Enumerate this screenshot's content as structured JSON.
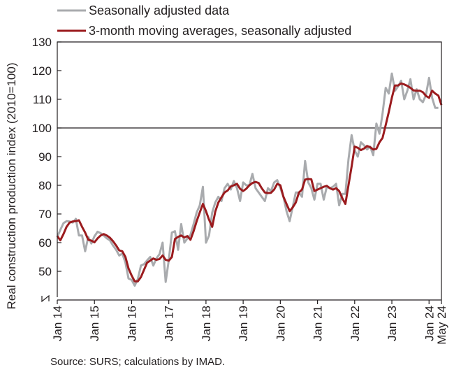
{
  "chart_data": {
    "type": "line",
    "ylabel": "Real construction production index (2010=100)",
    "ylim": [
      40,
      130
    ],
    "yticks": [
      50,
      60,
      70,
      80,
      90,
      100,
      110,
      120,
      130
    ],
    "x_range": [
      "2014-01",
      "2024-05"
    ],
    "xticks": [
      {
        "label": "Jan 14",
        "date": "2014-01"
      },
      {
        "label": "Jan 15",
        "date": "2015-01"
      },
      {
        "label": "Jan 16",
        "date": "2016-01"
      },
      {
        "label": "Jan 17",
        "date": "2017-01"
      },
      {
        "label": "Jan 18",
        "date": "2018-01"
      },
      {
        "label": "Jan 19",
        "date": "2019-01"
      },
      {
        "label": "Jan 20",
        "date": "2020-01"
      },
      {
        "label": "Jan 21",
        "date": "2021-01"
      },
      {
        "label": "Jan 22",
        "date": "2022-01"
      },
      {
        "label": "Jan 23",
        "date": "2023-01"
      },
      {
        "label": "Jan 24",
        "date": "2024-01"
      },
      {
        "label": "May 24",
        "date": "2024-05"
      }
    ],
    "reference_line": 100,
    "grid": false,
    "legend_position": "top-left",
    "series": [
      {
        "name": "Seasonally adjusted data",
        "color": "#a9abae",
        "values": [
          62,
          64.5,
          66.8,
          67.5,
          67.4,
          67,
          68.3,
          62.5,
          62.5,
          57,
          62,
          59.7,
          62.2,
          63.8,
          63.3,
          62.5,
          61.5,
          60.8,
          59,
          57.5,
          55.5,
          56.2,
          53,
          47.5,
          47,
          45,
          47.3,
          52,
          52.5,
          53.8,
          55,
          52,
          54.5,
          56,
          60,
          46.3,
          54,
          63.5,
          64,
          57.5,
          66.5,
          60,
          61.5,
          62.7,
          66.5,
          70.5,
          73,
          79.5,
          60,
          62.5,
          70.5,
          74,
          76,
          74.5,
          79,
          80.5,
          78.5,
          81.5,
          79,
          74.5,
          81,
          80,
          80,
          84,
          79,
          77.5,
          76,
          74.5,
          79,
          78,
          81,
          81.8,
          79,
          76,
          71,
          67.5,
          72.5,
          77.5,
          77.5,
          76,
          88.5,
          81,
          79,
          75,
          80.5,
          80.5,
          75,
          79.5,
          79,
          79.5,
          80.5,
          73,
          77,
          77,
          89,
          97.5,
          92.2,
          90,
          95,
          94,
          92.5,
          93.5,
          90.5,
          101.5,
          98,
          105,
          114,
          112,
          119,
          113,
          114.5,
          116.5,
          110,
          113,
          117,
          110,
          113.5,
          110,
          109,
          111.5,
          117.5,
          110.5,
          107,
          107
        ]
      },
      {
        "name": "3-month moving averages, seasonally adjusted",
        "color": "#9b1b1e",
        "values": [
          62.3,
          60.8,
          63,
          65.5,
          67,
          67.4,
          67.5,
          67.8,
          65.5,
          63.5,
          61,
          60.7,
          60.1,
          61.5,
          62.5,
          63,
          62.5,
          61.7,
          60.5,
          59,
          57.3,
          57,
          55,
          51,
          48.5,
          46.5,
          46.5,
          48,
          50.5,
          53,
          53.7,
          54.5,
          54,
          54.3,
          55.5,
          54,
          53.7,
          55,
          61.3,
          62,
          62.5,
          61.8,
          62.3,
          61,
          64,
          67.5,
          70.5,
          73.5,
          71,
          68,
          65.5,
          70.8,
          74,
          75.8,
          77.5,
          78.2,
          79.6,
          80,
          80.5,
          78.8,
          78,
          78.8,
          80,
          80.8,
          81.2,
          80.8,
          79,
          77.5,
          77.3,
          77.4,
          78.5,
          80.5,
          80,
          76,
          73.5,
          71,
          72.3,
          74,
          77.5,
          78.5,
          82,
          82.2,
          82.1,
          78,
          78.5,
          79,
          79.5,
          79.8,
          79,
          78.5,
          79,
          78,
          75.5,
          73.5,
          80,
          86.5,
          93.5,
          93.1,
          92.3,
          92.8,
          93.7,
          93.3,
          92.5,
          92.7,
          95,
          96.5,
          101,
          105.5,
          110.5,
          114.8,
          114.8,
          115.5,
          115.2,
          114.7,
          114,
          113.1,
          113,
          113,
          112.5,
          111.2,
          110.5,
          113,
          112,
          111.3,
          108
        ]
      }
    ],
    "source": "Source: SURS; calculations by IMAD."
  }
}
